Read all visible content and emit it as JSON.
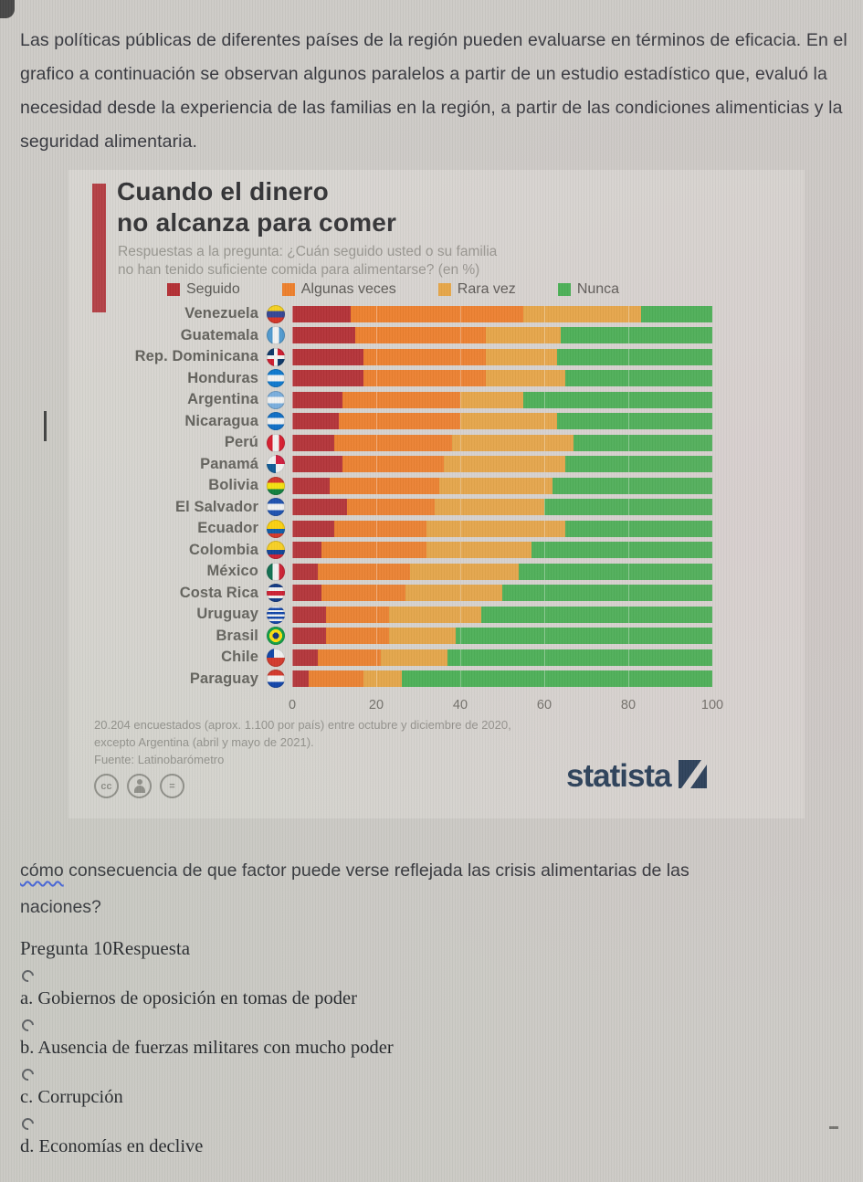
{
  "intro_paragraph": "Las políticas públicas de diferentes países de la región pueden evaluarse en términos de eficacia. En el grafico a continuación se observan algunos paralelos a partir de un estudio estadístico que, evaluó la necesidad desde la experiencia de las familias en la región, a partir de las condiciones alimenticias y la seguridad alimentaria.",
  "infographic": {
    "title_line1": "Cuando el dinero",
    "title_line2": "no alcanza para comer",
    "subtitle_line1": "Respuestas a la pregunta: ¿Cuán seguido usted o su familia",
    "subtitle_line2": "no han tenido suficiente comida para alimentarse? (en %)",
    "footnote_line1": "20.204 encuestados (aprox. 1.100 por país) entre octubre y diciembre de 2020,",
    "footnote_line2": "excepto Argentina (abril y mayo de 2021).",
    "source": "Fuente: Latinobarómetro",
    "brand": "statista",
    "brand_color": "#1d3550",
    "license_icons": [
      "cc-icon",
      "attribution-person-icon",
      "no-derivatives-equals-icon"
    ]
  },
  "chart_data": {
    "type": "bar",
    "stacked": true,
    "orientation": "horizontal",
    "title": "Cuando el dinero no alcanza para comer",
    "legend_position": "top",
    "xlim": [
      0,
      100
    ],
    "x_ticks": [
      0,
      20,
      40,
      60,
      80,
      100
    ],
    "categories": [
      "Venezuela",
      "Guatemala",
      "Rep. Dominicana",
      "Honduras",
      "Argentina",
      "Nicaragua",
      "Perú",
      "Panamá",
      "Bolivia",
      "El Salvador",
      "Ecuador",
      "Colombia",
      "México",
      "Costa Rica",
      "Uruguay",
      "Brasil",
      "Chile",
      "Paraguay"
    ],
    "flags": [
      "ve",
      "gt",
      "do",
      "hn",
      "ar",
      "ni",
      "pe",
      "pa",
      "bo",
      "sv",
      "ec",
      "co",
      "mx",
      "cr",
      "uy",
      "br",
      "cl",
      "py"
    ],
    "series": [
      {
        "name": "Seguido",
        "color": "#b2282e",
        "values": [
          14,
          15,
          17,
          17,
          12,
          11,
          10,
          12,
          9,
          13,
          10,
          7,
          6,
          7,
          8,
          8,
          6,
          4
        ]
      },
      {
        "name": "Algunas veces",
        "color": "#ee7b24",
        "values": [
          41,
          31,
          29,
          29,
          28,
          29,
          28,
          24,
          26,
          21,
          22,
          25,
          22,
          20,
          15,
          15,
          15,
          13
        ]
      },
      {
        "name": "Rara vez",
        "color": "#e7a33e",
        "values": [
          28,
          18,
          17,
          19,
          15,
          23,
          29,
          29,
          27,
          26,
          33,
          25,
          26,
          23,
          22,
          16,
          16,
          9
        ]
      },
      {
        "name": "Nunca",
        "color": "#3fae4c",
        "values": [
          17,
          36,
          37,
          35,
          45,
          37,
          33,
          35,
          38,
          40,
          35,
          43,
          46,
          50,
          55,
          61,
          63,
          74
        ]
      }
    ]
  },
  "question": {
    "intro_word": "cómo",
    "intro_rest": " consecuencia de que factor puede verse reflejada las crisis alimentarias de las",
    "intro_line2": "naciones?",
    "label": "Pregunta 10Respuesta",
    "options": [
      "a. Gobiernos de oposición en tomas de poder",
      "b. Ausencia de fuerzas militares con mucho poder",
      "c. Corrupción",
      "d. Economías en declive"
    ]
  }
}
